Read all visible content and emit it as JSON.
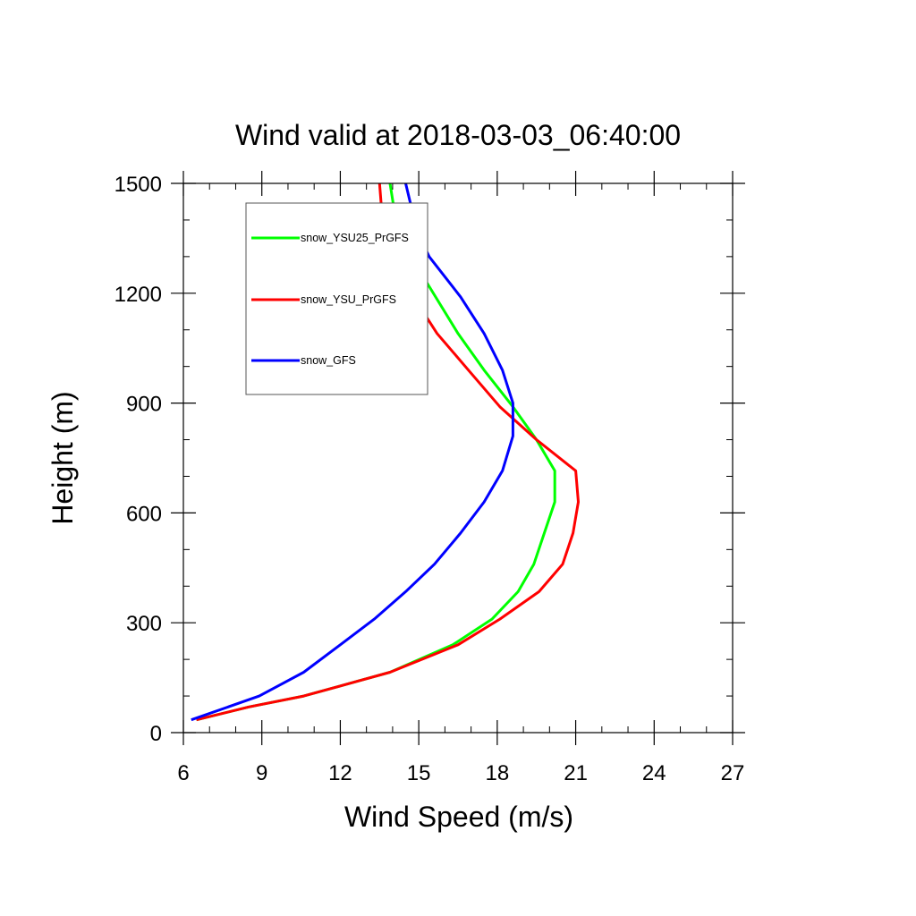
{
  "chart_data": {
    "type": "line",
    "title": "Wind valid at 2018-03-03_06:40:00",
    "xlabel": "Wind Speed (m/s)",
    "ylabel": "Height (m)",
    "xlim": [
      6,
      27
    ],
    "ylim": [
      0,
      1500
    ],
    "xticks": [
      6,
      9,
      12,
      15,
      18,
      21,
      24,
      27
    ],
    "yticks": [
      0,
      300,
      600,
      900,
      1200,
      1500
    ],
    "x_minor_step": 1,
    "y_minor_step": 100,
    "grid": false,
    "legend_position": "top-left",
    "series": [
      {
        "name": "snow_YSU25_PrGFS",
        "color": "#00ff00",
        "points": [
          [
            6.5,
            35
          ],
          [
            8.5,
            70
          ],
          [
            10.6,
            100
          ],
          [
            13.9,
            165
          ],
          [
            16.3,
            240
          ],
          [
            17.8,
            310
          ],
          [
            18.8,
            385
          ],
          [
            19.4,
            460
          ],
          [
            19.8,
            545
          ],
          [
            20.2,
            630
          ],
          [
            20.2,
            715
          ],
          [
            19.5,
            800
          ],
          [
            18.6,
            890
          ],
          [
            17.5,
            990
          ],
          [
            16.5,
            1090
          ],
          [
            15.3,
            1230
          ],
          [
            14.8,
            1300
          ],
          [
            14.3,
            1360
          ],
          [
            14.1,
            1410
          ],
          [
            13.9,
            1500
          ]
        ]
      },
      {
        "name": "snow_YSU_PrGFS",
        "color": "#ff0000",
        "points": [
          [
            6.5,
            35
          ],
          [
            8.5,
            70
          ],
          [
            10.6,
            100
          ],
          [
            13.9,
            165
          ],
          [
            16.5,
            240
          ],
          [
            18.1,
            310
          ],
          [
            19.6,
            385
          ],
          [
            20.5,
            460
          ],
          [
            20.9,
            545
          ],
          [
            21.1,
            630
          ],
          [
            21.0,
            715
          ],
          [
            19.5,
            800
          ],
          [
            18.1,
            890
          ],
          [
            16.9,
            990
          ],
          [
            15.7,
            1090
          ],
          [
            14.8,
            1190
          ],
          [
            13.8,
            1300
          ],
          [
            13.7,
            1360
          ],
          [
            13.6,
            1410
          ],
          [
            13.5,
            1500
          ]
        ]
      },
      {
        "name": "snow_GFS",
        "color": "#0000ff",
        "points": [
          [
            6.3,
            35
          ],
          [
            8.9,
            100
          ],
          [
            10.6,
            165
          ],
          [
            12.0,
            240
          ],
          [
            13.3,
            310
          ],
          [
            14.5,
            385
          ],
          [
            15.6,
            460
          ],
          [
            16.6,
            545
          ],
          [
            17.5,
            630
          ],
          [
            18.2,
            715
          ],
          [
            18.6,
            810
          ],
          [
            18.6,
            900
          ],
          [
            18.2,
            990
          ],
          [
            17.5,
            1090
          ],
          [
            16.6,
            1190
          ],
          [
            15.4,
            1300
          ],
          [
            15.0,
            1360
          ],
          [
            14.8,
            1410
          ],
          [
            14.5,
            1500
          ]
        ]
      }
    ]
  }
}
